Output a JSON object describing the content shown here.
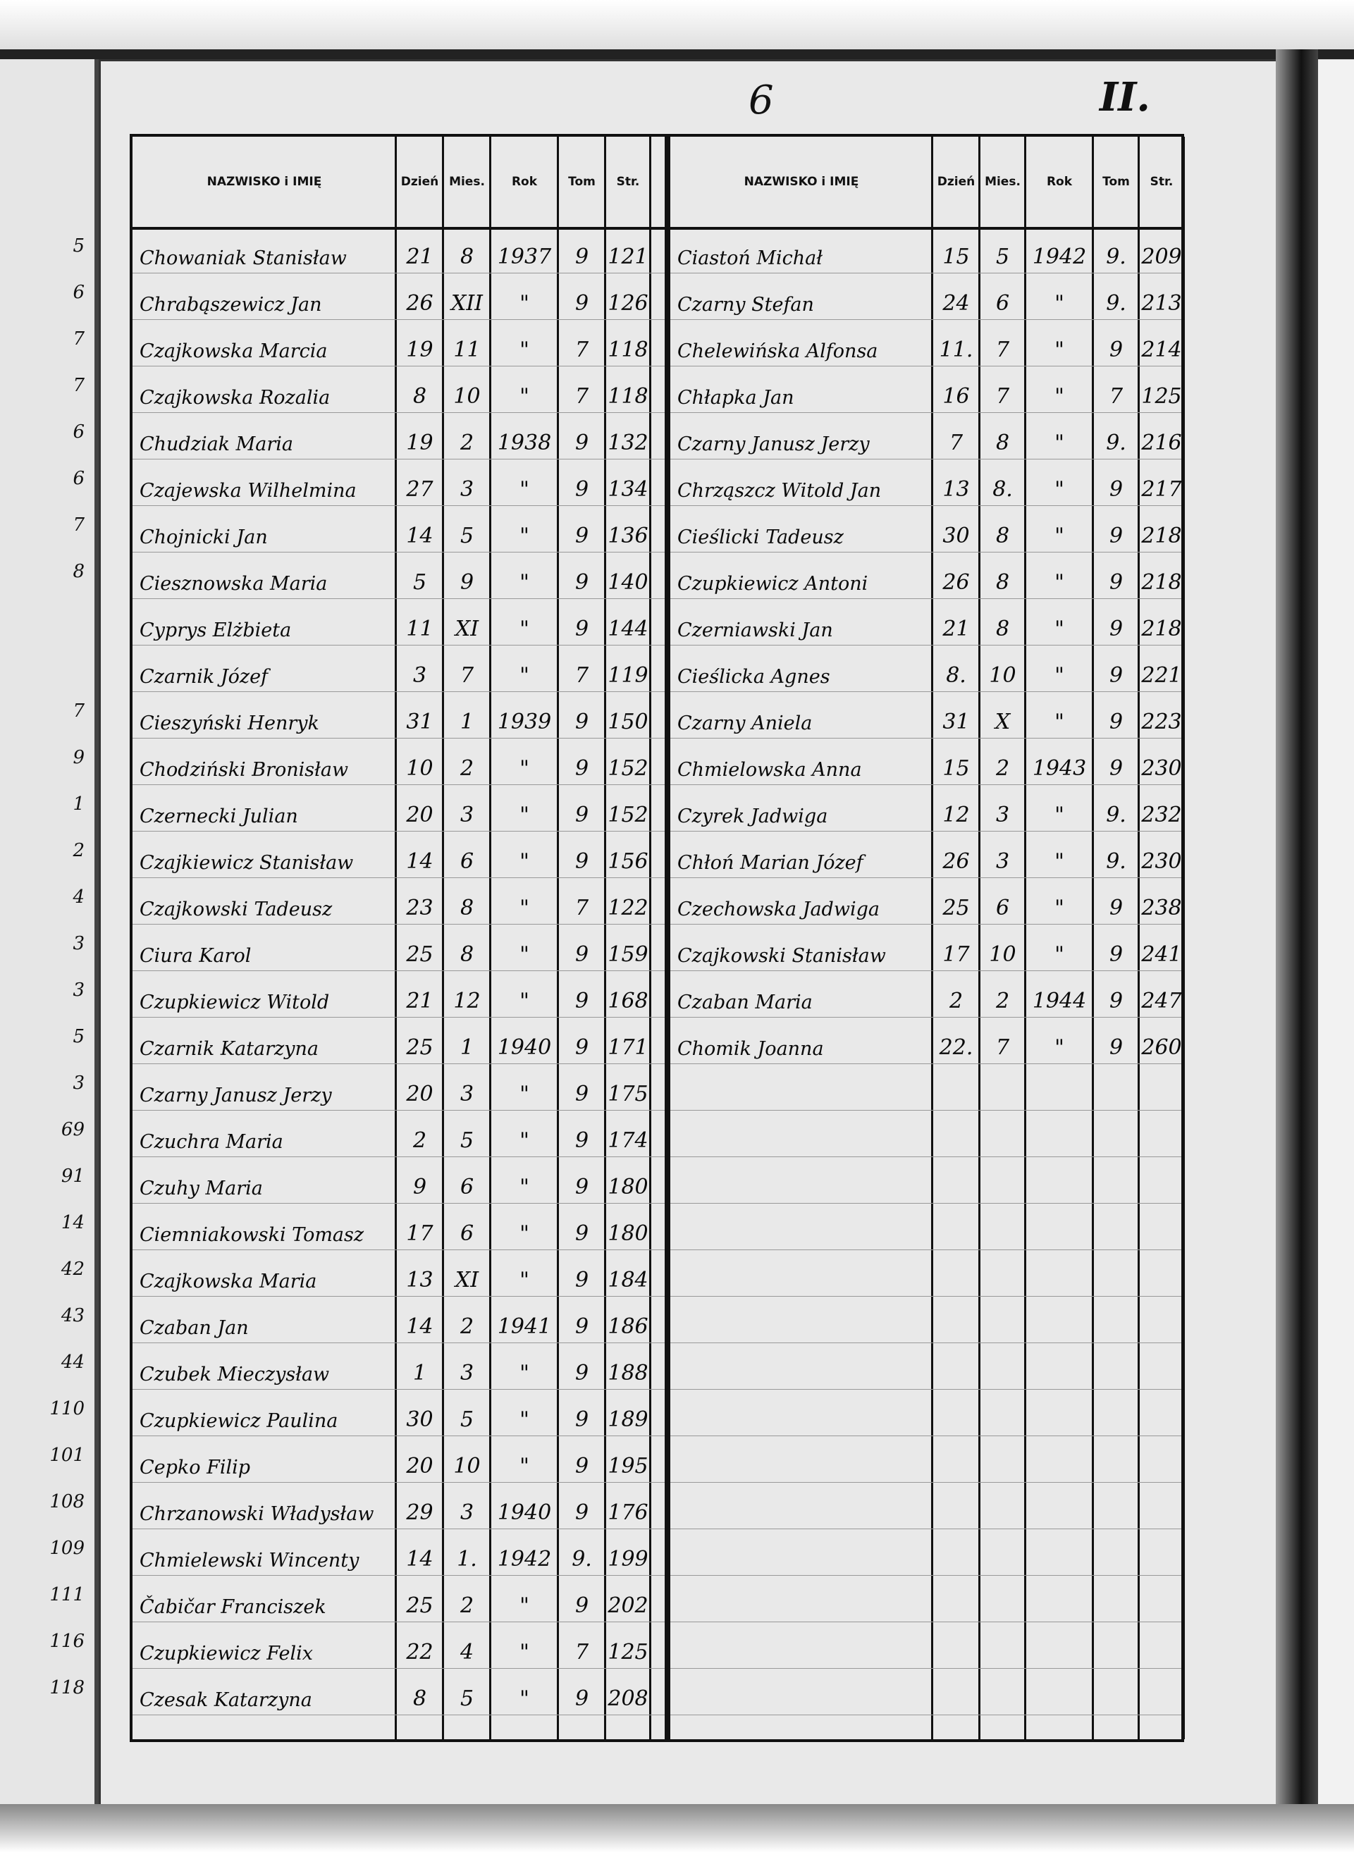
{
  "page": {
    "number": "6",
    "folio_mark": "II."
  },
  "columns": {
    "name": "NAZWISKO i IMIĘ",
    "day": "Dzień",
    "month": "Mies.",
    "year": "Rok",
    "volume": "Tom",
    "page": "Str."
  },
  "left_page_fragment": [
    "5",
    "6",
    "7",
    "7",
    "6",
    "6",
    "7",
    "8",
    "",
    "",
    "7",
    "9",
    "1",
    "2",
    "4",
    "3",
    "3",
    "5",
    "3",
    "69",
    "91",
    "14",
    "42",
    "43",
    "44",
    "110",
    "101",
    "108",
    "109",
    "111",
    "116",
    "118"
  ],
  "left_table": [
    {
      "name": "Chowaniak Stanisław",
      "day": "21",
      "month": "8",
      "year": "1937",
      "volume": "9",
      "page": "121"
    },
    {
      "name": "Chrabąszewicz Jan",
      "day": "26",
      "month": "XII",
      "year": "\"",
      "volume": "9",
      "page": "126"
    },
    {
      "name": "Czajkowska Marcia",
      "day": "19",
      "month": "11",
      "year": "\"",
      "volume": "7",
      "page": "118"
    },
    {
      "name": "Czajkowska Rozalia",
      "day": "8",
      "month": "10",
      "year": "\"",
      "volume": "7",
      "page": "118"
    },
    {
      "name": "Chudziak Maria",
      "day": "19",
      "month": "2",
      "year": "1938",
      "volume": "9",
      "page": "132"
    },
    {
      "name": "Czajewska Wilhelmina",
      "day": "27",
      "month": "3",
      "year": "\"",
      "volume": "9",
      "page": "134"
    },
    {
      "name": "Chojnicki Jan",
      "day": "14",
      "month": "5",
      "year": "\"",
      "volume": "9",
      "page": "136"
    },
    {
      "name": "Ciesznowska Maria",
      "day": "5",
      "month": "9",
      "year": "\"",
      "volume": "9",
      "page": "140"
    },
    {
      "name": "Cyprys Elżbieta",
      "day": "11",
      "month": "XI",
      "year": "\"",
      "volume": "9",
      "page": "144"
    },
    {
      "name": "Czarnik Józef",
      "day": "3",
      "month": "7",
      "year": "\"",
      "volume": "7",
      "page": "119"
    },
    {
      "name": "Cieszyński Henryk",
      "day": "31",
      "month": "1",
      "year": "1939",
      "volume": "9",
      "page": "150"
    },
    {
      "name": "Chodziński Bronisław",
      "day": "10",
      "month": "2",
      "year": "\"",
      "volume": "9",
      "page": "152"
    },
    {
      "name": "Czernecki Julian",
      "day": "20",
      "month": "3",
      "year": "\"",
      "volume": "9",
      "page": "152"
    },
    {
      "name": "Czajkiewicz Stanisław",
      "day": "14",
      "month": "6",
      "year": "\"",
      "volume": "9",
      "page": "156"
    },
    {
      "name": "Czajkowski Tadeusz",
      "day": "23",
      "month": "8",
      "year": "\"",
      "volume": "7",
      "page": "122"
    },
    {
      "name": "Ciura Karol",
      "day": "25",
      "month": "8",
      "year": "\"",
      "volume": "9",
      "page": "159"
    },
    {
      "name": "Czupkiewicz Witold",
      "day": "21",
      "month": "12",
      "year": "\"",
      "volume": "9",
      "page": "168"
    },
    {
      "name": "Czarnik Katarzyna",
      "day": "25",
      "month": "1",
      "year": "1940",
      "volume": "9",
      "page": "171"
    },
    {
      "name": "Czarny Janusz Jerzy",
      "day": "20",
      "month": "3",
      "year": "\"",
      "volume": "9",
      "page": "175"
    },
    {
      "name": "Czuchra Maria",
      "day": "2",
      "month": "5",
      "year": "\"",
      "volume": "9",
      "page": "174"
    },
    {
      "name": "Czuhy Maria",
      "day": "9",
      "month": "6",
      "year": "\"",
      "volume": "9",
      "page": "180"
    },
    {
      "name": "Ciemniakowski Tomasz",
      "day": "17",
      "month": "6",
      "year": "\"",
      "volume": "9",
      "page": "180"
    },
    {
      "name": "Czajkowska Maria",
      "day": "13",
      "month": "XI",
      "year": "\"",
      "volume": "9",
      "page": "184"
    },
    {
      "name": "Czaban Jan",
      "day": "14",
      "month": "2",
      "year": "1941",
      "volume": "9",
      "page": "186"
    },
    {
      "name": "Czubek Mieczysław",
      "day": "1",
      "month": "3",
      "year": "\"",
      "volume": "9",
      "page": "188"
    },
    {
      "name": "Czupkiewicz Paulina",
      "day": "30",
      "month": "5",
      "year": "\"",
      "volume": "9",
      "page": "189"
    },
    {
      "name": "Cepko Filip",
      "day": "20",
      "month": "10",
      "year": "\"",
      "volume": "9",
      "page": "195"
    },
    {
      "name": "Chrzanowski Władysław",
      "day": "29",
      "month": "3",
      "year": "1940",
      "volume": "9",
      "page": "176"
    },
    {
      "name": "Chmielewski Wincenty",
      "day": "14",
      "month": "1.",
      "year": "1942",
      "volume": "9.",
      "page": "199"
    },
    {
      "name": "Čabičar Franciszek",
      "day": "25",
      "month": "2",
      "year": "\"",
      "volume": "9",
      "page": "202"
    },
    {
      "name": "Czupkiewicz Felix",
      "day": "22",
      "month": "4",
      "year": "\"",
      "volume": "7",
      "page": "125"
    },
    {
      "name": "Czesak Katarzyna",
      "day": "8",
      "month": "5",
      "year": "\"",
      "volume": "9",
      "page": "208"
    }
  ],
  "right_table": [
    {
      "name": "Ciastoń Michał",
      "day": "15",
      "month": "5",
      "year": "1942",
      "volume": "9.",
      "page": "209"
    },
    {
      "name": "Czarny Stefan",
      "day": "24",
      "month": "6",
      "year": "\"",
      "volume": "9.",
      "page": "213"
    },
    {
      "name": "Chelewińska Alfonsa",
      "day": "11.",
      "month": "7",
      "year": "\"",
      "volume": "9",
      "page": "214"
    },
    {
      "name": "Chłapka Jan",
      "day": "16",
      "month": "7",
      "year": "\"",
      "volume": "7",
      "page": "125"
    },
    {
      "name": "Czarny Janusz Jerzy",
      "day": "7",
      "month": "8",
      "year": "\"",
      "volume": "9.",
      "page": "216"
    },
    {
      "name": "Chrząszcz Witold Jan",
      "day": "13",
      "month": "8.",
      "year": "\"",
      "volume": "9",
      "page": "217"
    },
    {
      "name": "Cieślicki Tadeusz",
      "day": "30",
      "month": "8",
      "year": "\"",
      "volume": "9",
      "page": "218"
    },
    {
      "name": "Czupkiewicz Antoni",
      "day": "26",
      "month": "8",
      "year": "\"",
      "volume": "9",
      "page": "218"
    },
    {
      "name": "Czerniawski Jan",
      "day": "21",
      "month": "8",
      "year": "\"",
      "volume": "9",
      "page": "218"
    },
    {
      "name": "Cieślicka Agnes",
      "day": "8.",
      "month": "10",
      "year": "\"",
      "volume": "9",
      "page": "221"
    },
    {
      "name": "Czarny Aniela",
      "day": "31",
      "month": "X",
      "year": "\"",
      "volume": "9",
      "page": "223"
    },
    {
      "name": "Chmielowska Anna",
      "day": "15",
      "month": "2",
      "year": "1943",
      "volume": "9",
      "page": "230"
    },
    {
      "name": "Czyrek Jadwiga",
      "day": "12",
      "month": "3",
      "year": "\"",
      "volume": "9.",
      "page": "232"
    },
    {
      "name": "Chłoń Marian Józef",
      "day": "26",
      "month": "3",
      "year": "\"",
      "volume": "9.",
      "page": "230"
    },
    {
      "name": "Czechowska Jadwiga",
      "day": "25",
      "month": "6",
      "year": "\"",
      "volume": "9",
      "page": "238"
    },
    {
      "name": "Czajkowski Stanisław",
      "day": "17",
      "month": "10",
      "year": "\"",
      "volume": "9",
      "page": "241"
    },
    {
      "name": "Czaban Maria",
      "day": "2",
      "month": "2",
      "year": "1944",
      "volume": "9",
      "page": "247"
    },
    {
      "name": "Chomik Joanna",
      "day": "22.",
      "month": "7",
      "year": "\"",
      "volume": "9",
      "page": "260"
    }
  ]
}
